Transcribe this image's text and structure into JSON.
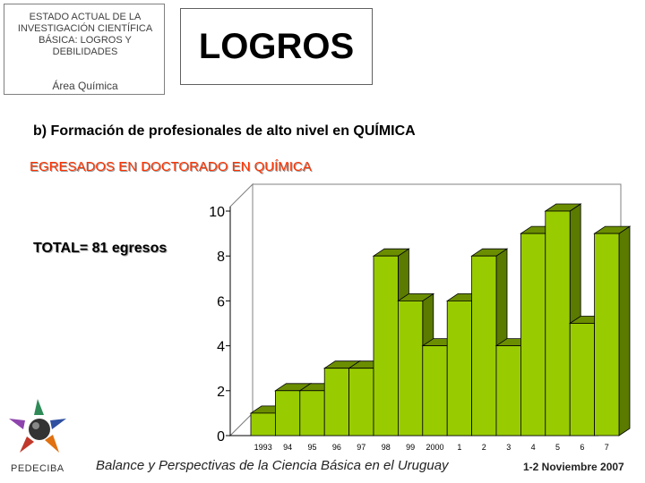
{
  "header": {
    "line1": "ESTADO ACTUAL DE LA",
    "line2": "INVESTIGACIÓN CIENTÍFICA",
    "line3": "BÁSICA: LOGROS Y",
    "line4": "DEBILIDADES",
    "area": "Área Química"
  },
  "main_title": "LOGROS",
  "section_title": "b) Formación de profesionales de alto nivel en QUÍMICA",
  "total_text": "TOTAL= 81 egresos",
  "logo_label": "PEDECIBA",
  "footer": {
    "text": "Balance y Perspectivas de la Ciencia Básica en el Uruguay",
    "date": "1-2 Noviembre 2007"
  },
  "colors": {
    "bar_front": "#99cc00",
    "bar_top": "#6b8e00",
    "bar_side": "#5a7a00",
    "title_red": "#ff3300"
  },
  "chart_data": {
    "type": "bar",
    "title": "EGRESADOS EN DOCTORADO EN QUÍMICA",
    "categories": [
      "1993",
      "94",
      "95",
      "96",
      "97",
      "98",
      "99",
      "2000",
      "1",
      "2",
      "3",
      "4",
      "5",
      "6",
      "7"
    ],
    "values": [
      1,
      2,
      2,
      3,
      3,
      8,
      6,
      4,
      6,
      8,
      4,
      9,
      10,
      5,
      9
    ],
    "yticks": [
      0,
      2,
      4,
      6,
      8,
      10
    ],
    "ylim": [
      0,
      10
    ],
    "grid": false,
    "three_d": true
  }
}
